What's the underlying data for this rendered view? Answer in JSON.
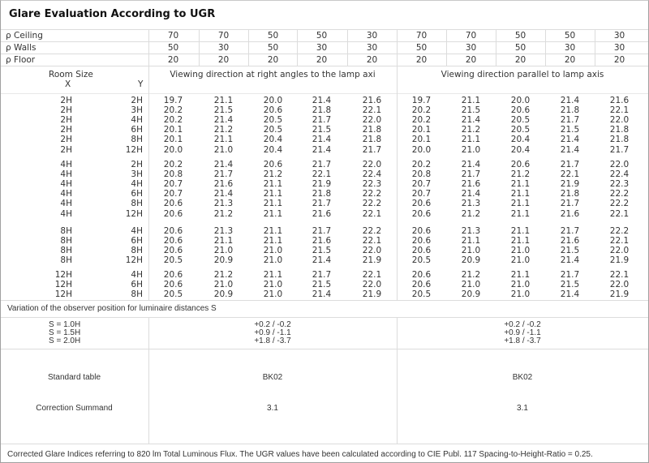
{
  "title": "Glare Evaluation According to UGR",
  "reflectances": [
    {
      "label": "ρ  Ceiling",
      "values": [
        "70",
        "70",
        "50",
        "50",
        "30",
        "70",
        "70",
        "50",
        "50",
        "30"
      ]
    },
    {
      "label": "ρ  Walls",
      "values": [
        "50",
        "30",
        "50",
        "30",
        "30",
        "50",
        "30",
        "50",
        "30",
        "30"
      ]
    },
    {
      "label": "ρ  Floor",
      "values": [
        "20",
        "20",
        "20",
        "20",
        "20",
        "20",
        "20",
        "20",
        "20",
        "20"
      ]
    }
  ],
  "room_size": {
    "label": "Room Size",
    "x": "X",
    "y": "Y"
  },
  "direction_right_angles": "Viewing direction at right angles to the lamp axi",
  "direction_parallel": "Viewing direction parallel to lamp axis",
  "groups": [
    {
      "rows": [
        {
          "x": "2H",
          "y": "2H",
          "v": [
            "19.7",
            "21.1",
            "20.0",
            "21.4",
            "21.6",
            "19.7",
            "21.1",
            "20.0",
            "21.4",
            "21.6"
          ]
        },
        {
          "x": "2H",
          "y": "3H",
          "v": [
            "20.2",
            "21.5",
            "20.6",
            "21.8",
            "22.1",
            "20.2",
            "21.5",
            "20.6",
            "21.8",
            "22.1"
          ]
        },
        {
          "x": "2H",
          "y": "4H",
          "v": [
            "20.2",
            "21.4",
            "20.5",
            "21.7",
            "22.0",
            "20.2",
            "21.4",
            "20.5",
            "21.7",
            "22.0"
          ]
        },
        {
          "x": "2H",
          "y": "6H",
          "v": [
            "20.1",
            "21.2",
            "20.5",
            "21.5",
            "21.8",
            "20.1",
            "21.2",
            "20.5",
            "21.5",
            "21.8"
          ]
        },
        {
          "x": "2H",
          "y": "8H",
          "v": [
            "20.1",
            "21.1",
            "20.4",
            "21.4",
            "21.8",
            "20.1",
            "21.1",
            "20.4",
            "21.4",
            "21.8"
          ]
        },
        {
          "x": "2H",
          "y": "12H",
          "v": [
            "20.0",
            "21.0",
            "20.4",
            "21.4",
            "21.7",
            "20.0",
            "21.0",
            "20.4",
            "21.4",
            "21.7"
          ]
        }
      ]
    },
    {
      "rows": [
        {
          "x": "4H",
          "y": "2H",
          "v": [
            "20.2",
            "21.4",
            "20.6",
            "21.7",
            "22.0",
            "20.2",
            "21.4",
            "20.6",
            "21.7",
            "22.0"
          ]
        },
        {
          "x": "4H",
          "y": "3H",
          "v": [
            "20.8",
            "21.7",
            "21.2",
            "22.1",
            "22.4",
            "20.8",
            "21.7",
            "21.2",
            "22.1",
            "22.4"
          ]
        },
        {
          "x": "4H",
          "y": "4H",
          "v": [
            "20.7",
            "21.6",
            "21.1",
            "21.9",
            "22.3",
            "20.7",
            "21.6",
            "21.1",
            "21.9",
            "22.3"
          ]
        },
        {
          "x": "4H",
          "y": "6H",
          "v": [
            "20.7",
            "21.4",
            "21.1",
            "21.8",
            "22.2",
            "20.7",
            "21.4",
            "21.1",
            "21.8",
            "22.2"
          ]
        },
        {
          "x": "4H",
          "y": "8H",
          "v": [
            "20.6",
            "21.3",
            "21.1",
            "21.7",
            "22.2",
            "20.6",
            "21.3",
            "21.1",
            "21.7",
            "22.2"
          ]
        },
        {
          "x": "4H",
          "y": "12H",
          "v": [
            "20.6",
            "21.2",
            "21.1",
            "21.6",
            "22.1",
            "20.6",
            "21.2",
            "21.1",
            "21.6",
            "22.1"
          ]
        }
      ]
    },
    {
      "rows": [
        {
          "x": "8H",
          "y": "4H",
          "v": [
            "20.6",
            "21.3",
            "21.1",
            "21.7",
            "22.2",
            "20.6",
            "21.3",
            "21.1",
            "21.7",
            "22.2"
          ]
        },
        {
          "x": "8H",
          "y": "6H",
          "v": [
            "20.6",
            "21.1",
            "21.1",
            "21.6",
            "22.1",
            "20.6",
            "21.1",
            "21.1",
            "21.6",
            "22.1"
          ]
        },
        {
          "x": "8H",
          "y": "8H",
          "v": [
            "20.6",
            "21.0",
            "21.0",
            "21.5",
            "22.0",
            "20.6",
            "21.0",
            "21.0",
            "21.5",
            "22.0"
          ]
        },
        {
          "x": "8H",
          "y": "12H",
          "v": [
            "20.5",
            "20.9",
            "21.0",
            "21.4",
            "21.9",
            "20.5",
            "20.9",
            "21.0",
            "21.4",
            "21.9"
          ]
        }
      ]
    },
    {
      "rows": [
        {
          "x": "12H",
          "y": "4H",
          "v": [
            "20.6",
            "21.2",
            "21.1",
            "21.7",
            "22.1",
            "20.6",
            "21.2",
            "21.1",
            "21.7",
            "22.1"
          ]
        },
        {
          "x": "12H",
          "y": "6H",
          "v": [
            "20.6",
            "21.0",
            "21.0",
            "21.5",
            "22.0",
            "20.6",
            "21.0",
            "21.0",
            "21.5",
            "22.0"
          ]
        },
        {
          "x": "12H",
          "y": "8H",
          "v": [
            "20.5",
            "20.9",
            "21.0",
            "21.4",
            "21.9",
            "20.5",
            "20.9",
            "21.0",
            "21.4",
            "21.9"
          ]
        }
      ]
    }
  ],
  "variation": {
    "label": "Variation of the observer position for luminaire distances S",
    "s_labels": [
      "S = 1.0H",
      "S = 1.5H",
      "S = 2.0H"
    ],
    "right_angles": [
      "+0.2 / -0.2",
      "+0.9 / -1.1",
      "+1.8 / -3.7"
    ],
    "parallel": [
      "+0.2 / -0.2",
      "+0.9 / -1.1",
      "+1.8 / -3.7"
    ]
  },
  "standard_table": {
    "label": "Standard table",
    "right_angles": "BK02",
    "parallel": "BK02"
  },
  "correction_summand": {
    "label": "Correction Summand",
    "right_angles": "3.1",
    "parallel": "3.1"
  },
  "footer": "Corrected Glare Indices referring to 820 lm Total Luminous Flux. The UGR values have been calculated according to CIE Publ. 117    Spacing-to-Height-Ratio = 0.25."
}
